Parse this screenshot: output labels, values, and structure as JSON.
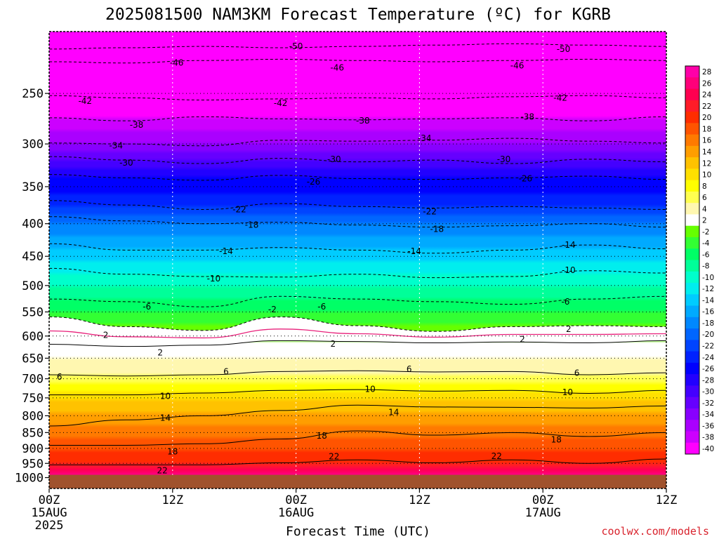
{
  "chart_data": {
    "type": "heatmap",
    "title": "2025081500 NAM3KM Forecast Temperature (ºC) for KGRB",
    "xlabel": "Forecast Time (UTC)",
    "ylabel": "",
    "y_scale": "log",
    "y_reversed": true,
    "ylim": [
      200,
      1040
    ],
    "xlim": [
      0,
      60
    ],
    "x_ticks": [
      {
        "hour": 0,
        "time": "00Z",
        "date": "15AUG",
        "year": "2025"
      },
      {
        "hour": 12,
        "time": "12Z",
        "date": "",
        "year": ""
      },
      {
        "hour": 24,
        "time": "00Z",
        "date": "16AUG",
        "year": ""
      },
      {
        "hour": 36,
        "time": "12Z",
        "date": "",
        "year": ""
      },
      {
        "hour": 48,
        "time": "00Z",
        "date": "17AUG",
        "year": ""
      },
      {
        "hour": 60,
        "time": "12Z",
        "date": "",
        "year": ""
      }
    ],
    "y_ticks": [
      250,
      300,
      350,
      400,
      450,
      500,
      550,
      600,
      650,
      700,
      750,
      800,
      850,
      900,
      950,
      1000
    ],
    "ground_pressure": 990,
    "colorbar_levels": [
      28,
      26,
      24,
      22,
      20,
      18,
      16,
      14,
      12,
      10,
      8,
      6,
      4,
      2,
      -2,
      -4,
      -6,
      -8,
      -10,
      -12,
      -14,
      -16,
      -18,
      -20,
      -22,
      -24,
      -26,
      -28,
      -30,
      -32,
      -34,
      -36,
      -38,
      -40
    ],
    "colorbar_colors": [
      "#ff00a8",
      "#ff007a",
      "#ff0050",
      "#ff1c28",
      "#ff2d00",
      "#ff5400",
      "#ff7a00",
      "#ff9e00",
      "#ffc200",
      "#ffe000",
      "#ffff00",
      "#ffff50",
      "#fff7b0",
      "#ffffff",
      "#66ff00",
      "#33ff33",
      "#00ff66",
      "#00ff99",
      "#00ffcc",
      "#00eeee",
      "#00ccff",
      "#00aaff",
      "#0088ff",
      "#0066ff",
      "#0044ff",
      "#0022ff",
      "#0000ff",
      "#2200ff",
      "#4400ff",
      "#6600ff",
      "#8800ff",
      "#aa00ff",
      "#cc00ff",
      "#ff00ff"
    ],
    "isotherms": [
      {
        "temp": -50,
        "p": [
          213,
          212,
          211,
          212,
          211,
          210,
          209,
          210,
          211
        ]
      },
      {
        "temp": -46,
        "p": [
          223,
          224,
          222,
          221,
          222,
          223,
          222,
          221,
          222
        ]
      },
      {
        "temp": -42,
        "p": [
          252,
          254,
          256,
          255,
          254,
          255,
          253,
          252,
          254
        ]
      },
      {
        "temp": -38,
        "p": [
          273,
          276,
          272,
          274,
          275,
          274,
          273,
          276,
          272
        ]
      },
      {
        "temp": -34,
        "p": [
          299,
          300,
          302,
          296,
          297,
          296,
          294,
          297,
          299
        ]
      },
      {
        "temp": -30,
        "p": [
          314,
          318,
          322,
          316,
          320,
          318,
          322,
          317,
          320
        ]
      },
      {
        "temp": -26,
        "p": [
          335,
          339,
          342,
          336,
          340,
          341,
          339,
          337,
          341
        ]
      },
      {
        "temp": -22,
        "p": [
          368,
          374,
          380,
          372,
          376,
          378,
          376,
          378,
          380
        ]
      },
      {
        "temp": -18,
        "p": [
          390,
          396,
          400,
          398,
          402,
          405,
          403,
          400,
          405
        ]
      },
      {
        "temp": -14,
        "p": [
          430,
          440,
          440,
          436,
          440,
          445,
          440,
          432,
          438
        ]
      },
      {
        "temp": -10,
        "p": [
          470,
          480,
          484,
          485,
          480,
          486,
          484,
          474,
          478
        ]
      },
      {
        "temp": -6,
        "p": [
          525,
          530,
          540,
          520,
          525,
          530,
          535,
          525,
          520
        ]
      },
      {
        "temp": -2,
        "p": [
          560,
          580,
          588,
          560,
          578,
          590,
          580,
          578,
          580
        ]
      },
      {
        "temp": 2,
        "p": [
          618,
          623,
          620,
          610,
          612,
          615,
          613,
          615,
          610
        ]
      },
      {
        "temp": 6,
        "p": [
          690,
          693,
          690,
          682,
          680,
          683,
          682,
          690,
          685
        ]
      },
      {
        "temp": 10,
        "p": [
          742,
          742,
          737,
          730,
          728,
          732,
          730,
          738,
          730
        ]
      },
      {
        "temp": 14,
        "p": [
          830,
          812,
          800,
          785,
          770,
          775,
          776,
          778,
          772
        ]
      },
      {
        "temp": 18,
        "p": [
          890,
          890,
          885,
          870,
          845,
          858,
          850,
          862,
          850
        ]
      },
      {
        "temp": 22,
        "p": [
          955,
          955,
          955,
          948,
          938,
          948,
          938,
          950,
          935
        ]
      }
    ],
    "labels": [
      {
        "text": "-50",
        "hour": 24.0,
        "p": 211
      },
      {
        "text": "-50",
        "hour": 50.0,
        "p": 213
      },
      {
        "text": "-46",
        "hour": 12.4,
        "p": 224
      },
      {
        "text": "-46",
        "hour": 28.0,
        "p": 228
      },
      {
        "text": "-46",
        "hour": 45.5,
        "p": 226
      },
      {
        "text": "-42",
        "hour": 3.5,
        "p": 257
      },
      {
        "text": "-42",
        "hour": 22.5,
        "p": 259
      },
      {
        "text": "-42",
        "hour": 49.7,
        "p": 254
      },
      {
        "text": "-38",
        "hour": 8.5,
        "p": 280
      },
      {
        "text": "-38",
        "hour": 30.5,
        "p": 276
      },
      {
        "text": "-38",
        "hour": 46.5,
        "p": 272
      },
      {
        "text": "-34",
        "hour": 6.5,
        "p": 302
      },
      {
        "text": "-34",
        "hour": 36.5,
        "p": 294
      },
      {
        "text": "-30",
        "hour": 7.5,
        "p": 321
      },
      {
        "text": "-30",
        "hour": 27.7,
        "p": 317
      },
      {
        "text": "-30",
        "hour": 44.2,
        "p": 317
      },
      {
        "text": "-26",
        "hour": 25.7,
        "p": 344
      },
      {
        "text": "-26",
        "hour": 46.3,
        "p": 340
      },
      {
        "text": "-22",
        "hour": 18.5,
        "p": 380
      },
      {
        "text": "-22",
        "hour": 37.0,
        "p": 383
      },
      {
        "text": "-18",
        "hour": 19.7,
        "p": 402
      },
      {
        "text": "-18",
        "hour": 37.7,
        "p": 408
      },
      {
        "text": "-14",
        "hour": 17.2,
        "p": 442
      },
      {
        "text": "-14",
        "hour": 35.5,
        "p": 442
      },
      {
        "text": "-14",
        "hour": 50.5,
        "p": 432
      },
      {
        "text": "-10",
        "hour": 16.0,
        "p": 488
      },
      {
        "text": "-10",
        "hour": 50.5,
        "p": 473
      },
      {
        "text": "-6",
        "hour": 9.5,
        "p": 540
      },
      {
        "text": "-6",
        "hour": 26.5,
        "p": 540
      },
      {
        "text": "-6",
        "hour": 50.2,
        "p": 530
      },
      {
        "text": "-2",
        "hour": 21.7,
        "p": 545
      },
      {
        "text": "2",
        "hour": 5.5,
        "p": 598
      },
      {
        "text": "2",
        "hour": 10.8,
        "p": 637
      },
      {
        "text": "2",
        "hour": 27.6,
        "p": 617
      },
      {
        "text": "2",
        "hour": 46.0,
        "p": 607
      },
      {
        "text": "2",
        "hour": 50.5,
        "p": 585
      },
      {
        "text": "6",
        "hour": 1.0,
        "p": 695
      },
      {
        "text": "6",
        "hour": 17.2,
        "p": 682
      },
      {
        "text": "6",
        "hour": 35.0,
        "p": 676
      },
      {
        "text": "6",
        "hour": 51.3,
        "p": 686
      },
      {
        "text": "10",
        "hour": 11.3,
        "p": 745
      },
      {
        "text": "10",
        "hour": 31.2,
        "p": 727
      },
      {
        "text": "10",
        "hour": 50.4,
        "p": 735
      },
      {
        "text": "14",
        "hour": 11.3,
        "p": 806
      },
      {
        "text": "14",
        "hour": 33.5,
        "p": 790
      },
      {
        "text": "18",
        "hour": 12.0,
        "p": 910
      },
      {
        "text": "18",
        "hour": 26.5,
        "p": 860
      },
      {
        "text": "18",
        "hour": 49.3,
        "p": 872
      },
      {
        "text": "22",
        "hour": 11.0,
        "p": 975
      },
      {
        "text": "22",
        "hour": 27.7,
        "p": 927
      },
      {
        "text": "22",
        "hour": 43.5,
        "p": 926
      }
    ],
    "grid": true,
    "legend": "right colorbar"
  },
  "credit": "coolwx.com/models",
  "colors": {
    "ground": "#a0522d",
    "zero_line": "#e8207a"
  }
}
